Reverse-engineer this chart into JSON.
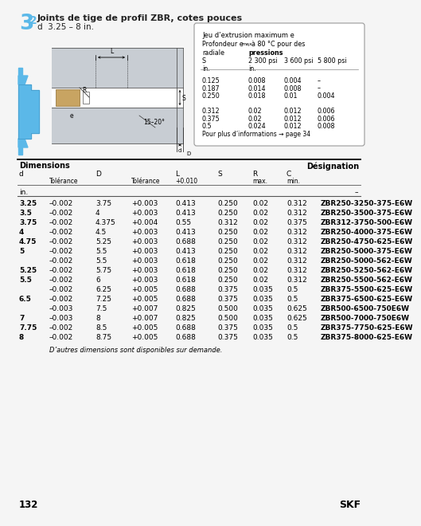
{
  "title_num": "3",
  "title_dot": ".",
  "title_num2": "2",
  "title_text": "  Joints de tige de profil ZBR, cotes pouces",
  "title_sub": "d  3.25 – 8 in.",
  "bg_color": "#f5f5f5",
  "section_color": "#5bb8e8",
  "text_color": "#222222",
  "box_title": "Jeu d’extrusion maximum e",
  "box_hdr_col1": "radiale",
  "box_hdr_col2": "pressions",
  "box_hdr_s": "S",
  "box_hdr_p1": "2 300 psi",
  "box_hdr_p2": "3 600 psi",
  "box_hdr_p3": "5 800 psi",
  "box_unit1": "in.",
  "box_unit2": "in.",
  "box_data": [
    [
      "0.125",
      "0.008",
      "0.004",
      "–"
    ],
    [
      "0.187",
      "0.014",
      "0.008",
      "–"
    ],
    [
      "0.250",
      "0.018",
      "0.01",
      "0.004"
    ],
    [
      "",
      "",
      "",
      ""
    ],
    [
      "0.312",
      "0.02",
      "0.012",
      "0.006"
    ],
    [
      "0.375",
      "0.02",
      "0.012",
      "0.006"
    ],
    [
      "0.5",
      "0.024",
      "0.012",
      "0.008"
    ]
  ],
  "box_footer": "Pour plus d’informations → page 34",
  "dim_header_left": "Dimensions",
  "dim_header_right": "Désignation",
  "table_rows": [
    [
      "3.25",
      "–0.002",
      "3.75",
      "+0.003",
      "0.413",
      "0.250",
      "0.02",
      "0.312",
      "ZBR250-3250-375-E6W"
    ],
    [
      "3.5",
      "–0.002",
      "4",
      "+0.003",
      "0.413",
      "0.250",
      "0.02",
      "0.312",
      "ZBR250-3500-375-E6W"
    ],
    [
      "3.75",
      "–0.002",
      "4.375",
      "+0.004",
      "0.55",
      "0.312",
      "0.02",
      "0.375",
      "ZBR312-3750-500-E6W"
    ],
    [
      "4",
      "–0.002",
      "4.5",
      "+0.003",
      "0.413",
      "0.250",
      "0.02",
      "0.312",
      "ZBR250-4000-375-E6W"
    ],
    [
      "4.75",
      "–0.002",
      "5.25",
      "+0.003",
      "0.688",
      "0.250",
      "0.02",
      "0.312",
      "ZBR250-4750-625-E6W"
    ],
    [
      "5",
      "–0.002",
      "5.5",
      "+0.003",
      "0.413",
      "0.250",
      "0.02",
      "0.312",
      "ZBR250-5000-375-E6W"
    ],
    [
      "",
      "–0.002",
      "5.5",
      "+0.003",
      "0.618",
      "0.250",
      "0.02",
      "0.312",
      "ZBR250-5000-562-E6W"
    ],
    [
      "5.25",
      "–0.002",
      "5.75",
      "+0.003",
      "0.618",
      "0.250",
      "0.02",
      "0.312",
      "ZBR250-5250-562-E6W"
    ],
    [
      "5.5",
      "–0.002",
      "6",
      "+0.003",
      "0.618",
      "0.250",
      "0.02",
      "0.312",
      "ZBR250-5500-562-E6W"
    ],
    [
      "",
      "–0.002",
      "6.25",
      "+0.005",
      "0.688",
      "0.375",
      "0.035",
      "0.5",
      "ZBR375-5500-625-E6W"
    ],
    [
      "6.5",
      "–0.002",
      "7.25",
      "+0.005",
      "0.688",
      "0.375",
      "0.035",
      "0.5",
      "ZBR375-6500-625-E6W"
    ],
    [
      "",
      "–0.003",
      "7.5",
      "+0.007",
      "0.825",
      "0.500",
      "0.035",
      "0.625",
      "ZBR500-6500-750E6W"
    ],
    [
      "7",
      "–0.003",
      "8",
      "+0.007",
      "0.825",
      "0.500",
      "0.035",
      "0.625",
      "ZBR500-7000-750E6W"
    ],
    [
      "7.75",
      "–0.002",
      "8.5",
      "+0.005",
      "0.688",
      "0.375",
      "0.035",
      "0.5",
      "ZBR375-7750-625-E6W"
    ],
    [
      "8",
      "–0.002",
      "8.75",
      "+0.005",
      "0.688",
      "0.375",
      "0.035",
      "0.5",
      "ZBR375-8000-625-E6W"
    ]
  ],
  "footer_note": "D’autres dimensions sont disponibles sur demande.",
  "page_num": "132",
  "skf_text": "SKF"
}
